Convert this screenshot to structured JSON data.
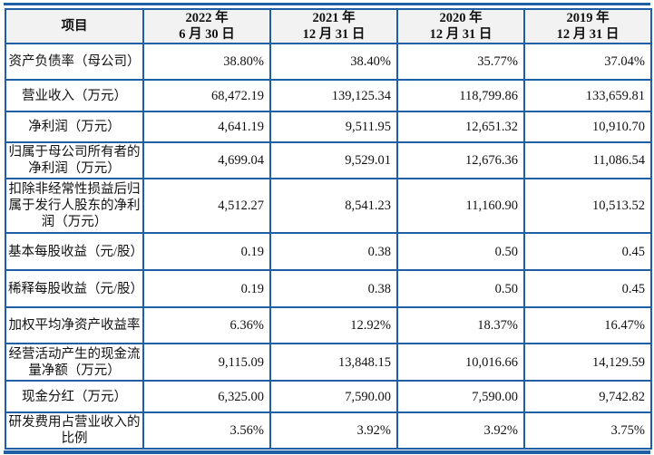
{
  "headers": [
    "项目",
    "2022年\n6月30日",
    "2021年\n12月31日",
    "2020年\n12月31日",
    "2019年\n12月31日"
  ],
  "header_lines": [
    [
      "项目"
    ],
    [
      "2022 年",
      "6 月 30 日"
    ],
    [
      "2021 年",
      "12 月 31 日"
    ],
    [
      "2020 年",
      "12 月 31 日"
    ],
    [
      "2019 年",
      "12 月 31 日"
    ]
  ],
  "rows": [
    {
      "label": "资产负债率（母公司）",
      "values": [
        "38.80%",
        "38.40%",
        "35.77%",
        "37.04%"
      ]
    },
    {
      "label": "营业收入（万元）",
      "values": [
        "68,472.19",
        "139,125.34",
        "118,799.86",
        "133,659.81"
      ]
    },
    {
      "label": "净利润（万元）",
      "values": [
        "4,641.19",
        "9,511.95",
        "12,651.32",
        "10,910.70"
      ]
    },
    {
      "label": "归属于母公司所有者的净利润（万元）",
      "values": [
        "4,699.04",
        "9,529.01",
        "12,676.36",
        "11,086.54"
      ]
    },
    {
      "label": "扣除非经常性损益后归属于发行人股东的净利润（万元）",
      "values": [
        "4,512.27",
        "8,541.23",
        "11,160.90",
        "10,513.52"
      ]
    },
    {
      "label": "基本每股收益（元/股）",
      "values": [
        "0.19",
        "0.38",
        "0.50",
        "0.45"
      ]
    },
    {
      "label": "稀释每股收益（元/股）",
      "values": [
        "0.19",
        "0.38",
        "0.50",
        "0.45"
      ]
    },
    {
      "label": "加权平均净资产收益率",
      "values": [
        "6.36%",
        "12.92%",
        "18.37%",
        "16.47%"
      ]
    },
    {
      "label": "经营活动产生的现金流量净额（万元）",
      "values": [
        "9,115.09",
        "13,848.15",
        "10,016.66",
        "14,129.59"
      ]
    },
    {
      "label": "现金分红（万元）",
      "values": [
        "6,325.00",
        "7,590.00",
        "7,590.00",
        "9,742.82"
      ]
    },
    {
      "label": "研发费用占营业收入的比例",
      "values": [
        "3.56%",
        "3.92%",
        "3.92%",
        "3.75%"
      ]
    }
  ],
  "colors": {
    "border": "#1f5fa6",
    "header_bg": "#f2f2f2"
  }
}
